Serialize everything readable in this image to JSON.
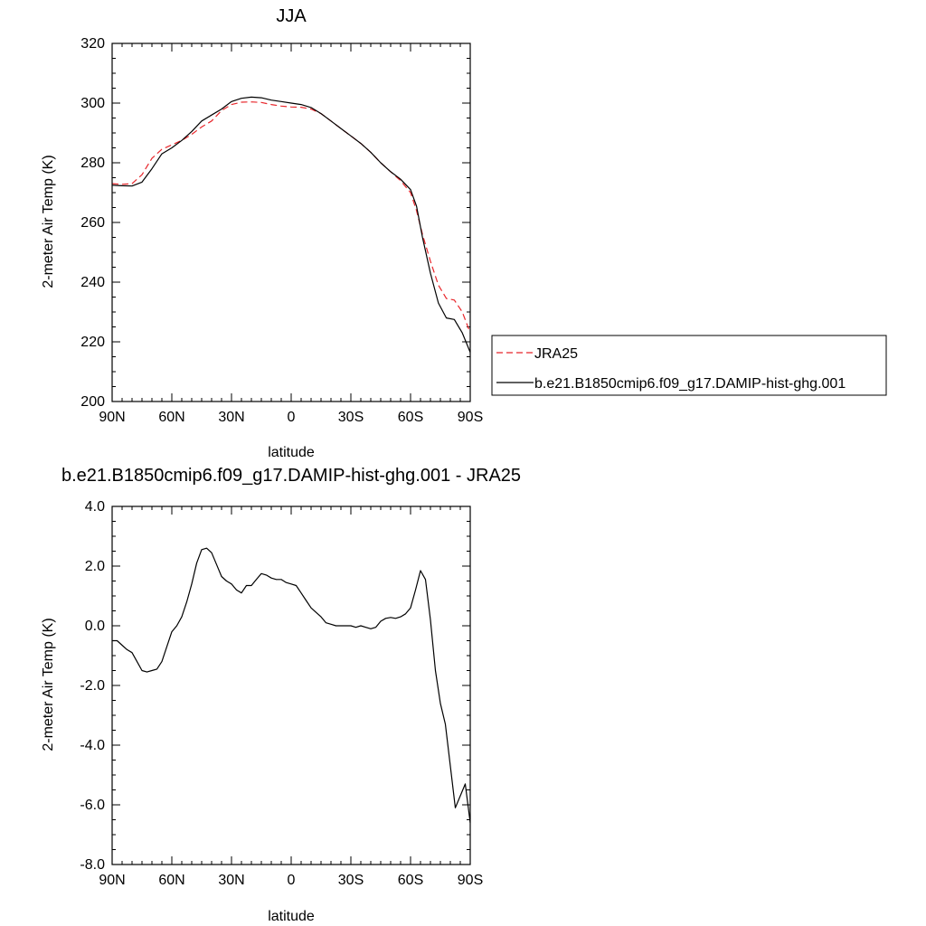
{
  "chart_data": [
    {
      "type": "line",
      "title": "JJA",
      "xlabel": "latitude",
      "ylabel": "2-meter Air Temp (K)",
      "xlim": [
        90,
        -90
      ],
      "ylim": [
        200,
        320
      ],
      "xticks": [
        90,
        60,
        30,
        0,
        -30,
        -60,
        -90
      ],
      "xtick_labels": [
        "90N",
        "60N",
        "30N",
        "0",
        "30S",
        "60S",
        "90S"
      ],
      "yticks": [
        200,
        220,
        240,
        260,
        280,
        300,
        320
      ],
      "ytick_labels": [
        "200",
        "220",
        "240",
        "260",
        "280",
        "300",
        "320"
      ],
      "legend_position": "right",
      "series": [
        {
          "name": "JRA25",
          "color": "#e8262b",
          "dash": "dashed",
          "x": [
            90,
            85,
            80,
            75,
            70,
            65,
            60,
            55,
            50,
            45,
            40,
            35,
            30,
            25,
            20,
            15,
            10,
            5,
            0,
            -5,
            -10,
            -15,
            -20,
            -25,
            -30,
            -35,
            -40,
            -45,
            -50,
            -55,
            -60,
            -63,
            -66,
            -70,
            -74,
            -78,
            -82,
            -86,
            -90
          ],
          "y": [
            273.0,
            272.8,
            273.0,
            276.0,
            281.5,
            284.5,
            286.0,
            287.5,
            289.5,
            292.0,
            294.0,
            297.5,
            299.5,
            300.3,
            300.4,
            300.2,
            299.5,
            299.0,
            298.7,
            298.6,
            298.0,
            296.5,
            294.0,
            291.5,
            289.0,
            286.5,
            283.5,
            280.0,
            277.0,
            274.0,
            270.0,
            264.0,
            256.0,
            247.0,
            239.0,
            234.5,
            234.0,
            230.0,
            223.0
          ]
        },
        {
          "name": "b.e21.B1850cmip6.f09_g17.DAMIP-hist-ghg.001",
          "color": "#000000",
          "dash": "solid",
          "x": [
            90,
            85,
            80,
            75,
            70,
            65,
            60,
            55,
            50,
            45,
            40,
            35,
            30,
            25,
            20,
            15,
            10,
            5,
            0,
            -5,
            -10,
            -15,
            -20,
            -25,
            -30,
            -35,
            -40,
            -45,
            -50,
            -55,
            -60,
            -63,
            -66,
            -70,
            -74,
            -78,
            -82,
            -86,
            -90
          ],
          "y": [
            272.5,
            272.3,
            272.2,
            273.5,
            278.0,
            283.0,
            285.0,
            287.5,
            290.5,
            294.0,
            296.0,
            298.0,
            300.5,
            301.6,
            302.0,
            301.8,
            301.0,
            300.5,
            300.0,
            299.5,
            298.5,
            296.5,
            294.0,
            291.5,
            289.0,
            286.5,
            283.5,
            280.0,
            277.0,
            274.5,
            271.0,
            265.5,
            255.0,
            243.0,
            233.0,
            228.0,
            227.5,
            223.0,
            216.5
          ]
        }
      ]
    },
    {
      "type": "line",
      "title": "b.e21.B1850cmip6.f09_g17.DAMIP-hist-ghg.001 - JRA25",
      "xlabel": "latitude",
      "ylabel": "2-meter Air Temp (K)",
      "xlim": [
        90,
        -90
      ],
      "ylim": [
        -8.0,
        4.0
      ],
      "xticks": [
        90,
        60,
        30,
        0,
        -30,
        -60,
        -90
      ],
      "xtick_labels": [
        "90N",
        "60N",
        "30N",
        "0",
        "30S",
        "60S",
        "90S"
      ],
      "yticks": [
        -8,
        -6,
        -4,
        -2,
        0,
        2,
        4
      ],
      "ytick_labels": [
        "-8.0",
        "-6.0",
        "-4.0",
        "-2.0",
        "0.0",
        "2.0",
        "4.0"
      ],
      "series": [
        {
          "color": "#000000",
          "dash": "solid",
          "x": [
            90,
            87.5,
            85,
            82.5,
            80,
            77.5,
            75,
            72.5,
            70,
            67.5,
            65,
            62.5,
            60,
            57.5,
            55,
            52.5,
            50,
            47.5,
            45,
            42.5,
            40,
            37.5,
            35,
            32.5,
            30,
            27.5,
            25,
            22.5,
            20,
            17.5,
            15,
            12.5,
            10,
            7.5,
            5,
            2.5,
            0,
            -2.5,
            -5,
            -7.5,
            -10,
            -12.5,
            -15,
            -17.5,
            -20,
            -22.5,
            -25,
            -27.5,
            -30,
            -32.5,
            -35,
            -37.5,
            -40,
            -42.5,
            -45,
            -47.5,
            -50,
            -52.5,
            -55,
            -57.5,
            -60,
            -62.5,
            -65,
            -67.5,
            -70,
            -72.5,
            -75,
            -77.5,
            -80,
            -82.5,
            -85,
            -87.5,
            -90
          ],
          "y": [
            -0.5,
            -0.5,
            -0.65,
            -0.8,
            -0.9,
            -1.2,
            -1.5,
            -1.55,
            -1.5,
            -1.45,
            -1.2,
            -0.7,
            -0.2,
            0.0,
            0.3,
            0.8,
            1.4,
            2.1,
            2.55,
            2.6,
            2.45,
            2.05,
            1.65,
            1.5,
            1.4,
            1.2,
            1.1,
            1.35,
            1.35,
            1.55,
            1.75,
            1.7,
            1.6,
            1.55,
            1.55,
            1.45,
            1.4,
            1.35,
            1.1,
            0.85,
            0.6,
            0.45,
            0.3,
            0.1,
            0.05,
            0.0,
            0.0,
            0.0,
            0.0,
            -0.05,
            0.0,
            -0.05,
            -0.1,
            -0.05,
            0.15,
            0.25,
            0.28,
            0.25,
            0.3,
            0.4,
            0.6,
            1.2,
            1.85,
            1.55,
            0.2,
            -1.5,
            -2.6,
            -3.3,
            -4.7,
            -6.1,
            -5.7,
            -5.3,
            -6.6
          ]
        }
      ]
    }
  ]
}
